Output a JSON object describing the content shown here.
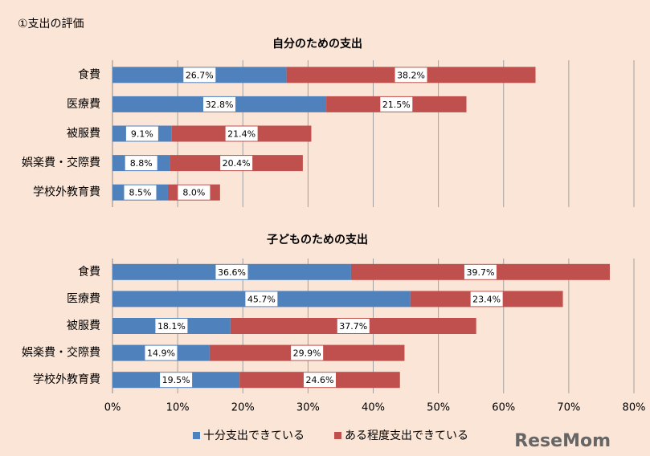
{
  "heading": "①支出の評価",
  "watermark": "ReseMom",
  "chart_data": [
    {
      "type": "bar",
      "orientation": "horizontal",
      "stacked": true,
      "title": "自分のための支出",
      "categories": [
        "食費",
        "医療費",
        "被服費",
        "娯楽費・交際費",
        "学校外教育費"
      ],
      "series": [
        {
          "color": "#4f81bd",
          "values": [
            26.7,
            32.8,
            9.1,
            8.8,
            8.5
          ],
          "value_labels": [
            "26.7%",
            "32.8%",
            "9.1%",
            "8.8%",
            "8.5%"
          ]
        },
        {
          "color": "#c0504d",
          "values": [
            38.2,
            21.5,
            21.4,
            20.4,
            8.0
          ],
          "value_labels": [
            "38.2%",
            "21.5%",
            "21.4%",
            "20.4%",
            "8.0%"
          ]
        }
      ],
      "xlim": [
        0,
        80
      ],
      "xticks": [
        0,
        10,
        20,
        30,
        40,
        50,
        60,
        70,
        80
      ],
      "grid": true
    },
    {
      "type": "bar",
      "orientation": "horizontal",
      "stacked": true,
      "title": "子どものための支出",
      "categories": [
        "食費",
        "医療費",
        "被服費",
        "娯楽費・交際費",
        "学校外教育費"
      ],
      "series": [
        {
          "name": "十分支出できている",
          "color": "#4f81bd",
          "values": [
            36.6,
            45.7,
            18.1,
            14.9,
            19.5
          ],
          "value_labels": [
            "36.6%",
            "45.7%",
            "18.1%",
            "14.9%",
            "19.5%"
          ]
        },
        {
          "name": "ある程度支出できている",
          "color": "#c0504d",
          "values": [
            39.7,
            23.4,
            37.7,
            29.9,
            24.6
          ],
          "value_labels": [
            "39.7%",
            "23.4%",
            "37.7%",
            "29.9%",
            "24.6%"
          ]
        }
      ],
      "xlim": [
        0,
        80
      ],
      "xticks": [
        {
          "value": 0,
          "label": "0%"
        },
        {
          "value": 10,
          "label": "10%"
        },
        {
          "value": 20,
          "label": "20%"
        },
        {
          "value": 30,
          "label": "30%"
        },
        {
          "value": 40,
          "label": "40%"
        },
        {
          "value": 50,
          "label": "50%"
        },
        {
          "value": 60,
          "label": "60%"
        },
        {
          "value": 70,
          "label": "70%"
        },
        {
          "value": 80,
          "label": "80%"
        }
      ],
      "grid": true,
      "legend": "bottom"
    }
  ]
}
